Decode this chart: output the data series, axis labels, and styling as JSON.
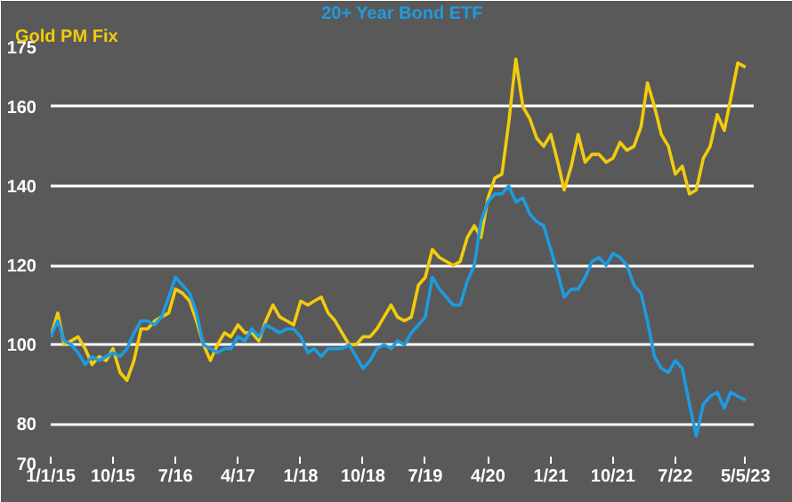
{
  "chart_data": {
    "type": "line",
    "x": [
      "2015-01",
      "2015-02",
      "2015-03",
      "2015-04",
      "2015-05",
      "2015-06",
      "2015-07",
      "2015-08",
      "2015-09",
      "2015-10",
      "2015-11",
      "2015-12",
      "2016-01",
      "2016-02",
      "2016-03",
      "2016-04",
      "2016-05",
      "2016-06",
      "2016-07",
      "2016-08",
      "2016-09",
      "2016-10",
      "2016-11",
      "2016-12",
      "2017-01",
      "2017-02",
      "2017-03",
      "2017-04",
      "2017-05",
      "2017-06",
      "2017-07",
      "2017-08",
      "2017-09",
      "2017-10",
      "2017-11",
      "2017-12",
      "2018-01",
      "2018-02",
      "2018-03",
      "2018-04",
      "2018-05",
      "2018-06",
      "2018-07",
      "2018-08",
      "2018-09",
      "2018-10",
      "2018-11",
      "2018-12",
      "2019-01",
      "2019-02",
      "2019-03",
      "2019-04",
      "2019-05",
      "2019-06",
      "2019-07",
      "2019-08",
      "2019-09",
      "2019-10",
      "2019-11",
      "2019-12",
      "2020-01",
      "2020-02",
      "2020-03",
      "2020-04",
      "2020-05",
      "2020-06",
      "2020-07",
      "2020-08",
      "2020-09",
      "2020-10",
      "2020-11",
      "2020-12",
      "2021-01",
      "2021-02",
      "2021-03",
      "2021-04",
      "2021-05",
      "2021-06",
      "2021-07",
      "2021-08",
      "2021-09",
      "2021-10",
      "2021-11",
      "2021-12",
      "2022-01",
      "2022-02",
      "2022-03",
      "2022-04",
      "2022-05",
      "2022-06",
      "2022-07",
      "2022-08",
      "2022-09",
      "2022-10",
      "2022-11",
      "2022-12",
      "2023-01",
      "2023-02",
      "2023-03",
      "2023-04",
      "2023-05-05"
    ],
    "series": [
      {
        "name": "Gold PM Fix",
        "color": "#f2cc0c",
        "values": [
          102,
          108,
          100,
          101,
          102,
          99,
          95,
          97,
          96,
          99,
          93,
          91,
          96,
          104,
          104,
          106,
          107,
          108,
          114,
          113,
          111,
          106,
          100,
          96,
          100,
          103,
          102,
          105,
          103,
          103,
          101,
          106,
          110,
          107,
          106,
          105,
          111,
          110,
          111,
          112,
          108,
          106,
          103,
          100,
          100,
          102,
          102,
          104,
          107,
          110,
          107,
          106,
          107,
          115,
          117,
          124,
          122,
          121,
          120,
          121,
          127,
          130,
          127,
          137,
          142,
          143,
          156,
          172,
          160,
          157,
          152,
          150,
          153,
          146,
          139,
          145,
          153,
          146,
          148,
          148,
          146,
          147,
          151,
          149,
          150,
          155,
          166,
          160,
          153,
          150,
          143,
          145,
          138,
          139,
          147,
          150,
          158,
          154,
          162,
          171,
          170
        ]
      },
      {
        "name": "20+ Year Bond ETF",
        "color": "#1e9be0",
        "values": [
          102,
          106,
          101,
          100,
          98,
          95,
          97,
          96,
          97,
          98,
          97,
          99,
          103,
          106,
          106,
          105,
          107,
          112,
          117,
          115,
          113,
          108,
          100,
          99,
          98,
          99,
          99,
          102,
          101,
          104,
          102,
          105,
          104,
          103,
          104,
          104,
          102,
          98,
          99,
          97,
          99,
          99,
          99,
          100,
          97,
          94,
          96,
          99,
          100,
          99,
          101,
          100,
          103,
          105,
          107,
          117,
          114,
          112,
          110,
          110,
          116,
          120,
          131,
          136,
          138,
          138,
          140,
          136,
          137,
          133,
          131,
          130,
          124,
          118,
          112,
          114,
          114,
          117,
          121,
          122,
          120,
          123,
          122,
          120,
          115,
          113,
          106,
          97,
          94,
          93,
          96,
          94,
          85,
          77,
          85,
          87,
          88,
          84,
          88,
          87,
          86
        ]
      }
    ],
    "xlim": [
      "2015-01-01",
      "2023-06-10"
    ],
    "xticks": [
      {
        "value": "2015-01-01",
        "label": "1/1/15"
      },
      {
        "value": "2015-10-01",
        "label": "10/15"
      },
      {
        "value": "2016-07-01",
        "label": "7/16"
      },
      {
        "value": "2017-04-01",
        "label": "4/17"
      },
      {
        "value": "2018-01-01",
        "label": "1/18"
      },
      {
        "value": "2018-10-01",
        "label": "10/18"
      },
      {
        "value": "2019-07-01",
        "label": "7/19"
      },
      {
        "value": "2020-04-01",
        "label": "4/20"
      },
      {
        "value": "2021-01-01",
        "label": "1/21"
      },
      {
        "value": "2021-10-01",
        "label": "10/21"
      },
      {
        "value": "2022-07-01",
        "label": "7/22"
      },
      {
        "value": "2023-05-05",
        "label": "5/5/23"
      }
    ],
    "ylim": [
      70,
      175
    ],
    "yticks": [
      70,
      80,
      100,
      120,
      140,
      160,
      175
    ],
    "grid": "y",
    "line_style": "solid"
  }
}
